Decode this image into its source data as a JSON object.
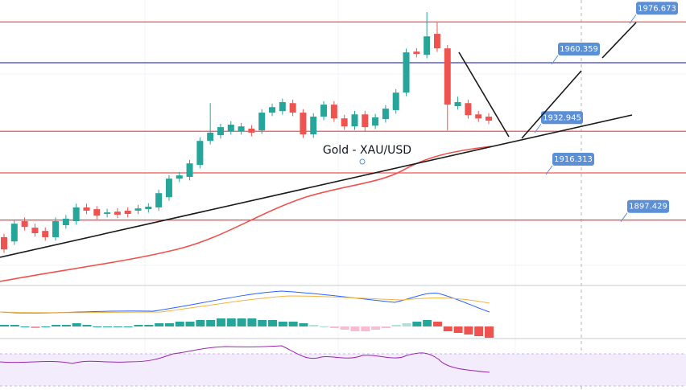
{
  "chart_data": {
    "type": "candlestick",
    "title": "Gold - XAU/USD",
    "up_color": "#26a69a",
    "down_color": "#ef5350",
    "open": [
      1890.6,
      1888.9,
      1897.0,
      1894.4,
      1893.1,
      1890.6,
      1895.4,
      1897.0,
      1902.5,
      1901.8,
      1899.9,
      1900.8,
      1901.2,
      1901.2,
      1901.8,
      1902.5,
      1906.6,
      1914.0,
      1914.7,
      1919.5,
      1929.1,
      1931.4,
      1933.0,
      1933.0,
      1934.0,
      1933.3,
      1940.4,
      1941.0,
      1944.2,
      1940.4,
      1931.7,
      1938.8,
      1943.6,
      1938.1,
      1934.9,
      1939.7,
      1935.2,
      1937.8,
      1941.4,
      1948.4,
      1964.8,
      1963.5,
      1971.9,
      1966.1,
      1943.0,
      1944.2,
      1939.7,
      1938.8
    ],
    "close": [
      1885.7,
      1896.0,
      1894.7,
      1892.2,
      1890.6,
      1897.0,
      1898.0,
      1902.5,
      1901.2,
      1899.2,
      1900.5,
      1899.6,
      1899.9,
      1902.1,
      1902.8,
      1908.2,
      1914.0,
      1915.3,
      1920.1,
      1929.1,
      1932.4,
      1934.6,
      1935.6,
      1934.9,
      1932.4,
      1940.4,
      1942.6,
      1944.6,
      1940.4,
      1931.7,
      1938.8,
      1943.6,
      1938.1,
      1934.9,
      1939.7,
      1934.6,
      1938.5,
      1942.0,
      1948.4,
      1964.5,
      1963.9,
      1970.9,
      1966.1,
      1943.6,
      1944.6,
      1939.4,
      1938.1,
      1937.2
    ],
    "high": [
      1892.0,
      1897.5,
      1898.5,
      1896.0,
      1894.5,
      1898.5,
      1899.5,
      1904.0,
      1904.0,
      1903.0,
      1902.0,
      1902.2,
      1902.6,
      1903.5,
      1904.2,
      1909.6,
      1915.4,
      1916.7,
      1921.5,
      1930.5,
      1944.2,
      1936.0,
      1937.0,
      1936.3,
      1935.4,
      1941.8,
      1944.0,
      1946.0,
      1945.6,
      1941.8,
      1940.2,
      1945.0,
      1945.0,
      1939.5,
      1941.1,
      1941.1,
      1939.9,
      1943.4,
      1949.8,
      1966.0,
      1966.2,
      1980.6,
      1976.4,
      1967.5,
      1946.8,
      1945.6,
      1941.1,
      1940.2
    ],
    "low": [
      1884.3,
      1887.5,
      1893.3,
      1890.8,
      1889.2,
      1889.2,
      1894.0,
      1895.6,
      1899.8,
      1897.8,
      1898.5,
      1898.2,
      1898.5,
      1899.8,
      1900.4,
      1901.1,
      1905.2,
      1912.6,
      1913.3,
      1918.1,
      1927.7,
      1930.0,
      1931.6,
      1931.6,
      1931.0,
      1931.9,
      1939.0,
      1939.6,
      1939.0,
      1930.3,
      1930.3,
      1937.4,
      1936.7,
      1933.5,
      1933.5,
      1933.2,
      1933.8,
      1936.4,
      1940.0,
      1947.0,
      1962.5,
      1962.1,
      1964.7,
      1933.3,
      1941.6,
      1938.0,
      1936.7,
      1935.8
    ],
    "levels": [
      {
        "value": 1976.673,
        "color": "#ef5350"
      },
      {
        "value": 1960.359,
        "color": "#3f3fbf"
      },
      {
        "value": 1932.945,
        "color": "#ef5350"
      },
      {
        "value": 1916.313,
        "color": "#ef5350"
      },
      {
        "value": 1897.429,
        "color": "#ef5350"
      }
    ],
    "label_color": "#5b8fd6"
  }
}
